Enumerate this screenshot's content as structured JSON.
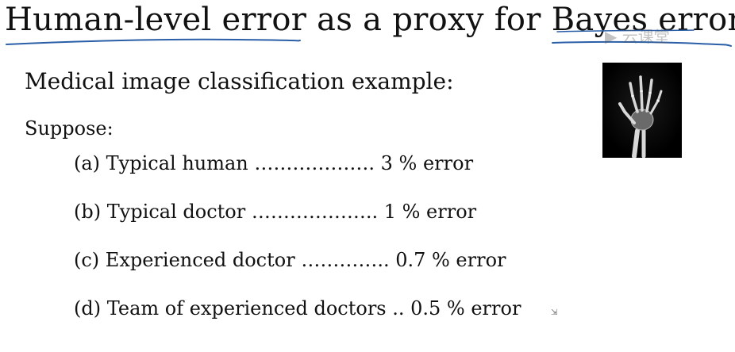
{
  "slide": {
    "title": "Human-level error as a proxy for Bayes error",
    "subtitle": "Medical image classification example:",
    "suppose": "Suppose:",
    "items": [
      "(a) Typical human ………………. 3 % error",
      "(b) Typical doctor ……………….. 1 % error",
      "(c) Experienced doctor ………….. 0.7 % error",
      "(d) Team of experienced doctors .. 0.5 % error"
    ]
  },
  "annotations": {
    "ink_color": "#2a5fa8"
  },
  "image": {
    "icon": "hand-xray-icon"
  }
}
